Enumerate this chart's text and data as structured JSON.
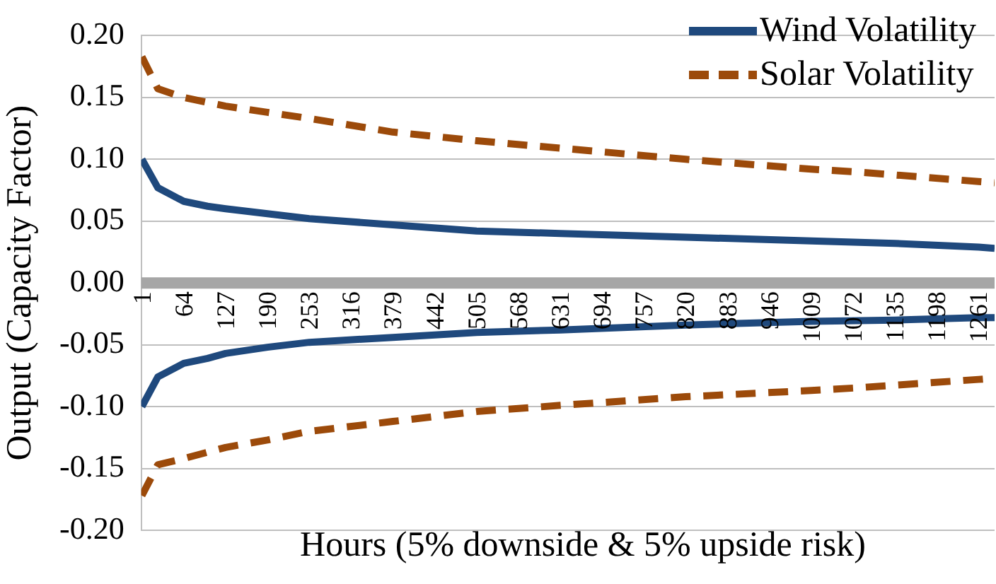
{
  "chart_data": {
    "type": "line",
    "xlabel": "Hours (5% downside & 5% upside risk)",
    "ylabel": "Output (Capacity Factor)",
    "xlim": [
      0,
      1285
    ],
    "xticks": [
      1,
      64,
      127,
      190,
      253,
      316,
      379,
      442,
      505,
      568,
      631,
      694,
      757,
      820,
      883,
      946,
      1009,
      1072,
      1135,
      1198,
      1261
    ],
    "ylim": [
      -0.2,
      0.2
    ],
    "yticks": [
      {
        "value": -0.2,
        "label": "-0.20"
      },
      {
        "value": -0.15,
        "label": "-0.15"
      },
      {
        "value": -0.1,
        "label": "-0.10"
      },
      {
        "value": -0.05,
        "label": "-0.05"
      },
      {
        "value": 0,
        "label": "0.00"
      },
      {
        "value": 0.05,
        "label": "0.05"
      },
      {
        "value": 0.1,
        "label": "0.10"
      },
      {
        "value": 0.15,
        "label": "0.15"
      },
      {
        "value": 0.2,
        "label": "0.20"
      }
    ],
    "grid": "y",
    "legend": "top right",
    "marker": "none",
    "series": [
      {
        "name": "Wind Volatility",
        "color": "#1f497d",
        "line_style": "solid",
        "x": [
          1,
          25,
          64,
          100,
          127,
          190,
          253,
          379,
          505,
          631,
          820,
          1009,
          1135,
          1261,
          1285
        ],
        "values": [
          0.1,
          0.077,
          0.066,
          0.062,
          0.06,
          0.056,
          0.052,
          0.047,
          0.042,
          0.04,
          0.037,
          0.034,
          0.032,
          0.029,
          0.028
        ]
      },
      {
        "color": "#1f497d",
        "line_style": "solid",
        "x": [
          1,
          25,
          64,
          100,
          127,
          190,
          253,
          379,
          505,
          631,
          820,
          1009,
          1135,
          1261,
          1285
        ],
        "values": [
          -0.1,
          -0.076,
          -0.065,
          -0.061,
          -0.057,
          -0.052,
          -0.048,
          -0.044,
          -0.04,
          -0.038,
          -0.034,
          -0.031,
          -0.03,
          -0.028,
          -0.028
        ]
      },
      {
        "name": "Solar Volatility",
        "color": "#9c4a0a",
        "line_style": "dashed",
        "x": [
          1,
          25,
          64,
          127,
          190,
          253,
          379,
          505,
          631,
          820,
          1009,
          1072,
          1261,
          1285
        ],
        "values": [
          0.183,
          0.157,
          0.15,
          0.143,
          0.138,
          0.133,
          0.122,
          0.115,
          0.109,
          0.1,
          0.092,
          0.09,
          0.082,
          0.081
        ]
      },
      {
        "color": "#9c4a0a",
        "line_style": "dashed",
        "x": [
          1,
          25,
          64,
          127,
          190,
          253,
          379,
          505,
          631,
          820,
          1009,
          1072,
          1261,
          1285
        ],
        "values": [
          -0.172,
          -0.147,
          -0.142,
          -0.133,
          -0.127,
          -0.12,
          -0.112,
          -0.104,
          -0.099,
          -0.092,
          -0.087,
          -0.085,
          -0.078,
          -0.077
        ]
      }
    ]
  }
}
